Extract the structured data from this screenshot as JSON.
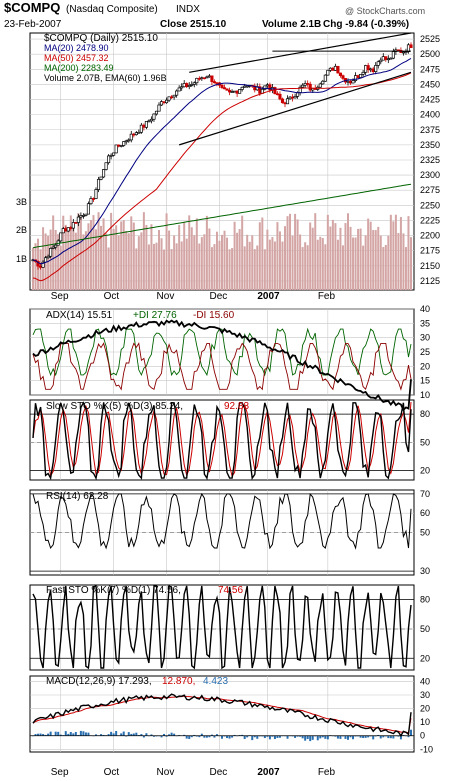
{
  "header": {
    "symbol": "$COMPQ",
    "name": "(Nasdaq Composite)",
    "exchange": "INDX",
    "date": "23-Feb-2007",
    "close_label": "Close 2515.10",
    "volume_label": "Volume 2.1B",
    "change_label": "Chg -9.84 (-0.39%)",
    "watermark": "@ StockCharts.com"
  },
  "colors": {
    "up": "#000000",
    "down": "#cc0000",
    "ma20": "#000080",
    "ma50": "#cc0000",
    "ma200": "#006400",
    "volume": "#d4a5a5",
    "grid": "#c8c8c8",
    "adx": "#000000",
    "plus_di": "#006400",
    "minus_di": "#8b0000",
    "macd_hist": "#2a6fb0"
  },
  "panels": {
    "price": {
      "legend": {
        "series": "$COMPQ (Daily) 2515.10",
        "ma20": "MA(20) 2478.90",
        "ma50": "MA(50) 2457.32",
        "ma200": "MA(200) 2283.49",
        "volume": "Volume 2.07B, EMA(60) 1.96B"
      }
    },
    "adx": {
      "legend_a": "ADX(14) 15.51",
      "legend_b": "+DI 27.76",
      "legend_c": "-DI 15.60"
    },
    "slowsto": {
      "legend_a": "Slow STO %K(5) %D(3) 85.24,",
      "legend_b": "92.83"
    },
    "rsi": {
      "legend": "RSI(14) 62.28"
    },
    "faststo": {
      "legend_a": "Fast STO %K(7) %D(1) 74.56,",
      "legend_b": "74.56"
    },
    "macd": {
      "legend_a": "MACD(12,26,9) 17.293,",
      "legend_b": "12.870,",
      "legend_c": "4.423"
    }
  },
  "chart_data": [
    {
      "type": "candlestick",
      "title": "$COMPQ (Daily)",
      "x_months": [
        "Sep",
        "Oct",
        "Nov",
        "Dec",
        "2007",
        "Feb"
      ],
      "ylim": [
        2110,
        2535
      ],
      "y_ticks": [
        2125,
        2150,
        2175,
        2200,
        2225,
        2250,
        2275,
        2300,
        2325,
        2350,
        2375,
        2400,
        2425,
        2450,
        2475,
        2500,
        2525
      ],
      "close_keypoints": [
        [
          0,
          2160
        ],
        [
          3,
          2150
        ],
        [
          6,
          2170
        ],
        [
          9,
          2185
        ],
        [
          12,
          2210
        ],
        [
          15,
          2215
        ],
        [
          18,
          2230
        ],
        [
          21,
          2240
        ],
        [
          24,
          2265
        ],
        [
          27,
          2300
        ],
        [
          30,
          2330
        ],
        [
          33,
          2345
        ],
        [
          36,
          2355
        ],
        [
          39,
          2365
        ],
        [
          42,
          2375
        ],
        [
          45,
          2385
        ],
        [
          48,
          2400
        ],
        [
          51,
          2420
        ],
        [
          54,
          2430
        ],
        [
          57,
          2440
        ],
        [
          60,
          2447
        ],
        [
          63,
          2450
        ],
        [
          66,
          2460
        ],
        [
          69,
          2465
        ],
        [
          72,
          2455
        ],
        [
          75,
          2440
        ],
        [
          78,
          2435
        ],
        [
          81,
          2440
        ],
        [
          84,
          2450
        ],
        [
          87,
          2445
        ],
        [
          90,
          2440
        ],
        [
          93,
          2450
        ],
        [
          96,
          2435
        ],
        [
          99,
          2420
        ],
        [
          102,
          2425
        ],
        [
          105,
          2440
        ],
        [
          108,
          2450
        ],
        [
          111,
          2440
        ],
        [
          114,
          2455
        ],
        [
          117,
          2470
        ],
        [
          120,
          2480
        ],
        [
          123,
          2460
        ],
        [
          126,
          2455
        ],
        [
          129,
          2465
        ],
        [
          132,
          2480
        ],
        [
          135,
          2475
        ],
        [
          138,
          2495
        ],
        [
          141,
          2490
        ],
        [
          144,
          2505
        ],
        [
          147,
          2505
        ],
        [
          150,
          2515
        ]
      ],
      "volume_axis": {
        "labels": [
          "1B",
          "2B",
          "3B"
        ]
      },
      "ma200_range": [
        2180,
        2285
      ]
    },
    {
      "type": "line",
      "title": "ADX(14) +DI -DI",
      "ylim": [
        10,
        40
      ],
      "y_ticks": [
        10,
        15,
        20,
        25,
        30,
        35,
        40
      ],
      "series": [
        {
          "name": "ADX(14)",
          "last": 15.51
        },
        {
          "name": "+DI",
          "last": 27.76
        },
        {
          "name": "-DI",
          "last": 15.6
        }
      ]
    },
    {
      "type": "line",
      "title": "Slow STO %K(5) %D(3)",
      "ylim": [
        10,
        95
      ],
      "y_ticks": [
        20,
        50,
        80
      ],
      "series": [
        {
          "name": "%K",
          "last": 85.24
        },
        {
          "name": "%D",
          "last": 92.83
        }
      ]
    },
    {
      "type": "line",
      "title": "RSI(14)",
      "ylim": [
        28,
        72
      ],
      "y_ticks": [
        30,
        50,
        60,
        70
      ],
      "series": [
        {
          "name": "RSI(14)",
          "last": 62.28
        }
      ]
    },
    {
      "type": "line",
      "title": "Fast STO %K(7) %D(1)",
      "ylim": [
        8,
        95
      ],
      "y_ticks": [
        20,
        50,
        80
      ],
      "series": [
        {
          "name": "%K",
          "last": 74.56
        },
        {
          "name": "%D",
          "last": 74.56
        }
      ]
    },
    {
      "type": "bar+line",
      "title": "MACD(12,26,9)",
      "ylim": [
        -12,
        44
      ],
      "y_ticks": [
        -10,
        0,
        10,
        20,
        30,
        40
      ],
      "series": [
        {
          "name": "MACD",
          "last": 17.293
        },
        {
          "name": "Signal",
          "last": 12.87
        },
        {
          "name": "Histogram",
          "last": 4.423
        }
      ]
    }
  ]
}
